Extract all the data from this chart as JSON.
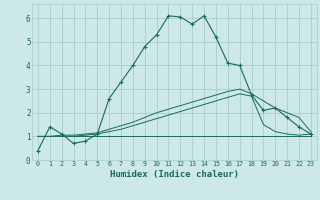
{
  "title": "",
  "xlabel": "Humidex (Indice chaleur)",
  "bg_color": "#cce8e8",
  "grid_color": "#aacccc",
  "line_color": "#1a6b5a",
  "xlim": [
    -0.5,
    23.5
  ],
  "ylim": [
    0,
    6.6
  ],
  "xticks": [
    0,
    1,
    2,
    3,
    4,
    5,
    6,
    7,
    8,
    9,
    10,
    11,
    12,
    13,
    14,
    15,
    16,
    17,
    18,
    19,
    20,
    21,
    22,
    23
  ],
  "yticks": [
    0,
    1,
    2,
    3,
    4,
    5,
    6
  ],
  "curve1_x": [
    0,
    1,
    2,
    3,
    4,
    5,
    6,
    7,
    8,
    9,
    10,
    11,
    12,
    13,
    14,
    15,
    16,
    17,
    18,
    19,
    20,
    21,
    22,
    23
  ],
  "curve1_y": [
    0.4,
    1.4,
    1.1,
    0.7,
    0.8,
    1.1,
    2.6,
    3.3,
    4.0,
    4.8,
    5.3,
    6.1,
    6.05,
    5.75,
    6.1,
    5.2,
    4.1,
    4.0,
    2.75,
    2.1,
    2.2,
    1.8,
    1.4,
    1.1
  ],
  "curve2_x": [
    0,
    1,
    2,
    3,
    4,
    5,
    6,
    7,
    8,
    9,
    10,
    11,
    12,
    13,
    14,
    15,
    16,
    17,
    18,
    19,
    20,
    21,
    22,
    23
  ],
  "curve2_y": [
    1.0,
    1.0,
    1.05,
    1.05,
    1.1,
    1.15,
    1.3,
    1.45,
    1.6,
    1.8,
    2.0,
    2.15,
    2.3,
    2.45,
    2.6,
    2.75,
    2.9,
    3.0,
    2.8,
    2.5,
    2.2,
    2.0,
    1.8,
    1.2
  ],
  "curve3_x": [
    0,
    1,
    2,
    3,
    4,
    5,
    6,
    7,
    8,
    9,
    10,
    11,
    12,
    13,
    14,
    15,
    16,
    17,
    18,
    19,
    20,
    21,
    22,
    23
  ],
  "curve3_y": [
    1.0,
    1.0,
    1.0,
    1.0,
    1.05,
    1.1,
    1.2,
    1.3,
    1.45,
    1.6,
    1.75,
    1.9,
    2.05,
    2.2,
    2.35,
    2.5,
    2.65,
    2.8,
    2.7,
    1.5,
    1.2,
    1.1,
    1.05,
    1.1
  ],
  "curve4_x": [
    0,
    1,
    2,
    3,
    4,
    5,
    6,
    7,
    8,
    9,
    10,
    11,
    12,
    13,
    14,
    15,
    16,
    17,
    18,
    19,
    20,
    21,
    22,
    23
  ],
  "curve4_y": [
    1.0,
    1.0,
    1.0,
    1.0,
    1.0,
    1.0,
    1.0,
    1.0,
    1.0,
    1.0,
    1.0,
    1.0,
    1.0,
    1.0,
    1.0,
    1.0,
    1.0,
    1.0,
    1.0,
    1.0,
    1.0,
    1.0,
    1.0,
    1.0
  ]
}
